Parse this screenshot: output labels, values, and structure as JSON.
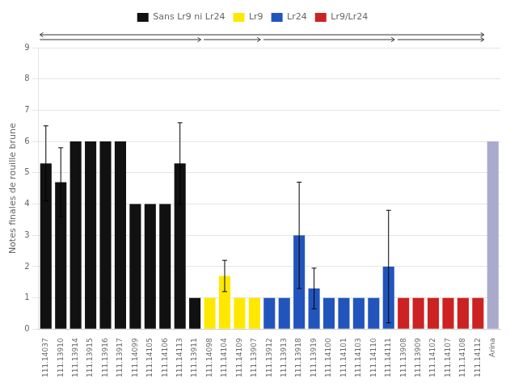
{
  "chart_data": {
    "type": "bar",
    "categories": [
      "111.14037",
      "111.13910",
      "111.13914",
      "111.13915",
      "111.13916",
      "111.13917",
      "111.14099",
      "111.14105",
      "111.14106",
      "111.14113",
      "111.13911",
      "111.14098",
      "111.14104",
      "111.14109",
      "111.13907",
      "111.13912",
      "111.13913",
      "111.13918",
      "111.13919",
      "111.14100",
      "111.14101",
      "111.14103",
      "111.14110",
      "111.14111",
      "111.13908",
      "111.13909",
      "111.14102",
      "111.14107",
      "111.14108",
      "111.14112",
      "Arina"
    ],
    "series": [
      {
        "name": "Sans Lr9 ni Lr24",
        "color": "#111111",
        "values": [
          5.3,
          4.7,
          6.0,
          6.0,
          6.0,
          6.0,
          4.0,
          4.0,
          4.0,
          5.3,
          1.0,
          null,
          null,
          null,
          null,
          null,
          null,
          null,
          null,
          null,
          null,
          null,
          null,
          null,
          null,
          null,
          null,
          null,
          null,
          null,
          null
        ],
        "errors": [
          1.2,
          1.1,
          0.0,
          0.0,
          0.0,
          0.0,
          0.0,
          0.0,
          0.0,
          1.3,
          0.0,
          null,
          null,
          null,
          null,
          null,
          null,
          null,
          null,
          null,
          null,
          null,
          null,
          null,
          null,
          null,
          null,
          null,
          null,
          null,
          null
        ]
      },
      {
        "name": "Lr9",
        "color": "#FFE800",
        "values": [
          null,
          null,
          null,
          null,
          null,
          null,
          null,
          null,
          null,
          null,
          null,
          1.0,
          1.7,
          1.0,
          1.0,
          null,
          null,
          null,
          null,
          null,
          null,
          null,
          null,
          null,
          null,
          null,
          null,
          null,
          null,
          null,
          null
        ],
        "errors": [
          null,
          null,
          null,
          null,
          null,
          null,
          null,
          null,
          null,
          null,
          null,
          0.0,
          0.5,
          0.0,
          0.0,
          null,
          null,
          null,
          null,
          null,
          null,
          null,
          null,
          null,
          null,
          null,
          null,
          null,
          null,
          null,
          null
        ]
      },
      {
        "name": "Lr24",
        "color": "#2255BB",
        "values": [
          null,
          null,
          null,
          null,
          null,
          null,
          null,
          null,
          null,
          null,
          null,
          null,
          null,
          null,
          null,
          1.0,
          1.0,
          3.0,
          1.3,
          1.0,
          1.0,
          1.0,
          1.0,
          2.0,
          null,
          null,
          null,
          null,
          null,
          null,
          null
        ],
        "errors": [
          null,
          null,
          null,
          null,
          null,
          null,
          null,
          null,
          null,
          null,
          null,
          null,
          null,
          null,
          null,
          0.0,
          0.0,
          1.7,
          0.65,
          0.0,
          0.0,
          0.0,
          0.0,
          1.8,
          null,
          null,
          null,
          null,
          null,
          null,
          null
        ]
      },
      {
        "name": "Lr9/Lr24",
        "color": "#CC2222",
        "values": [
          null,
          null,
          null,
          null,
          null,
          null,
          null,
          null,
          null,
          null,
          null,
          null,
          null,
          null,
          null,
          null,
          null,
          null,
          null,
          null,
          null,
          null,
          null,
          null,
          1.0,
          1.0,
          1.0,
          1.0,
          1.0,
          1.0,
          null
        ],
        "errors": [
          null,
          null,
          null,
          null,
          null,
          null,
          null,
          null,
          null,
          null,
          null,
          null,
          null,
          null,
          null,
          null,
          null,
          null,
          null,
          null,
          null,
          null,
          null,
          null,
          0.0,
          0.0,
          0.0,
          0.0,
          0.0,
          0.0,
          null
        ]
      },
      {
        "color": "#AAAACC",
        "values": [
          null,
          null,
          null,
          null,
          null,
          null,
          null,
          null,
          null,
          null,
          null,
          null,
          null,
          null,
          null,
          null,
          null,
          null,
          null,
          null,
          null,
          null,
          null,
          null,
          null,
          null,
          null,
          null,
          null,
          null,
          6.0
        ],
        "errors": [
          null,
          null,
          null,
          null,
          null,
          null,
          null,
          null,
          null,
          null,
          null,
          null,
          null,
          null,
          null,
          null,
          null,
          null,
          null,
          null,
          null,
          null,
          null,
          null,
          null,
          null,
          null,
          null,
          null,
          null,
          0.0
        ]
      }
    ],
    "ylabel": "Notes finales de rouille brune",
    "ylim": [
      0,
      9
    ],
    "yticks": [
      0,
      1,
      2,
      3,
      4,
      5,
      6,
      7,
      8,
      9
    ],
    "grid": true,
    "legend": "top"
  }
}
